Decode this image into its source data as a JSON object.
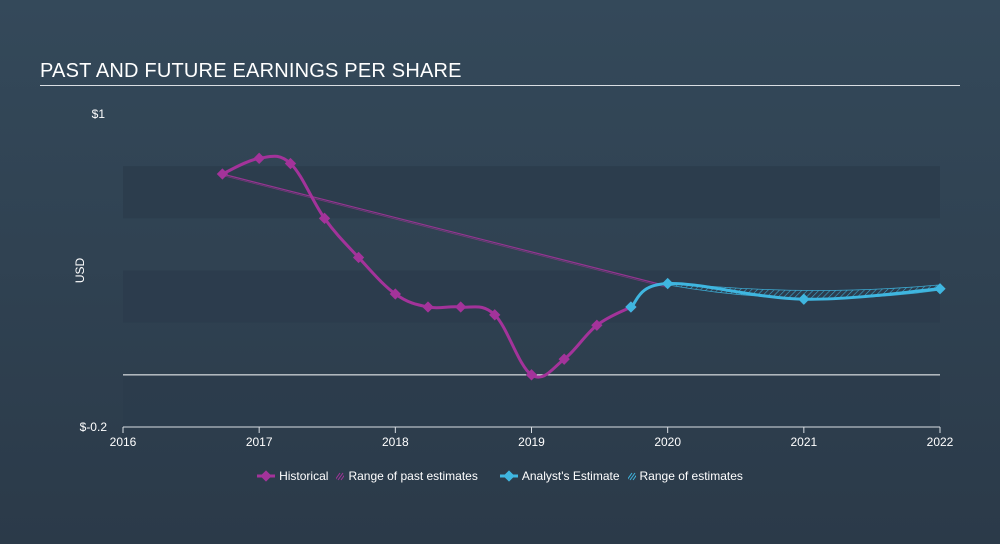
{
  "title": "PAST AND FUTURE EARNINGS PER SHARE",
  "chart_data": {
    "type": "line",
    "ylabel": "USD",
    "y_tick_labels": {
      "top": "$1",
      "bottom": "$-0.2"
    },
    "ylim": [
      -0.2,
      1.0
    ],
    "xlim": [
      2016,
      2022.0
    ],
    "x_ticks": [
      "2016",
      "2017",
      "2018",
      "2019",
      "2020",
      "2021",
      "2022"
    ],
    "series": [
      {
        "name": "Historical",
        "color": "#a3339a",
        "points": [
          [
            2016.73,
            0.77
          ],
          [
            2017.0,
            0.83
          ],
          [
            2017.23,
            0.81
          ],
          [
            2017.48,
            0.6
          ],
          [
            2017.73,
            0.45
          ],
          [
            2018.0,
            0.31
          ],
          [
            2018.24,
            0.26
          ],
          [
            2018.48,
            0.26
          ],
          [
            2018.73,
            0.23
          ],
          [
            2019.0,
            0.0
          ],
          [
            2019.24,
            0.06
          ],
          [
            2019.48,
            0.19
          ],
          [
            2019.73,
            0.26
          ]
        ]
      },
      {
        "name": "Range of past estimates",
        "color": "#a3339a",
        "points": [
          [
            2016.73,
            0.77
          ],
          [
            2020.0,
            0.34
          ]
        ]
      },
      {
        "name": "Analyst's Estimate",
        "color": "#3fb6e0",
        "points": [
          [
            2019.73,
            0.26
          ],
          [
            2020.0,
            0.35
          ],
          [
            2021.0,
            0.29
          ],
          [
            2022.0,
            0.33
          ]
        ]
      },
      {
        "name": "Range of estimates",
        "color": "#3fb6e0",
        "upper": [
          [
            2020.0,
            0.355
          ],
          [
            2021.0,
            0.305
          ],
          [
            2022.0,
            0.345
          ]
        ],
        "lower": [
          [
            2020.0,
            0.345
          ],
          [
            2021.0,
            0.275
          ],
          [
            2022.0,
            0.325
          ]
        ]
      }
    ],
    "zero_line": 0.0,
    "legend": [
      {
        "label": "Historical",
        "kind": "line-diamond",
        "color": "#a3339a"
      },
      {
        "label": "Range of past estimates",
        "kind": "hatch",
        "color": "#a3339a"
      },
      {
        "label": "Analyst's Estimate",
        "kind": "line-diamond",
        "color": "#3fb6e0"
      },
      {
        "label": "Range of estimates",
        "kind": "hatch",
        "color": "#3fb6e0"
      }
    ],
    "legend_position": "bottom"
  }
}
